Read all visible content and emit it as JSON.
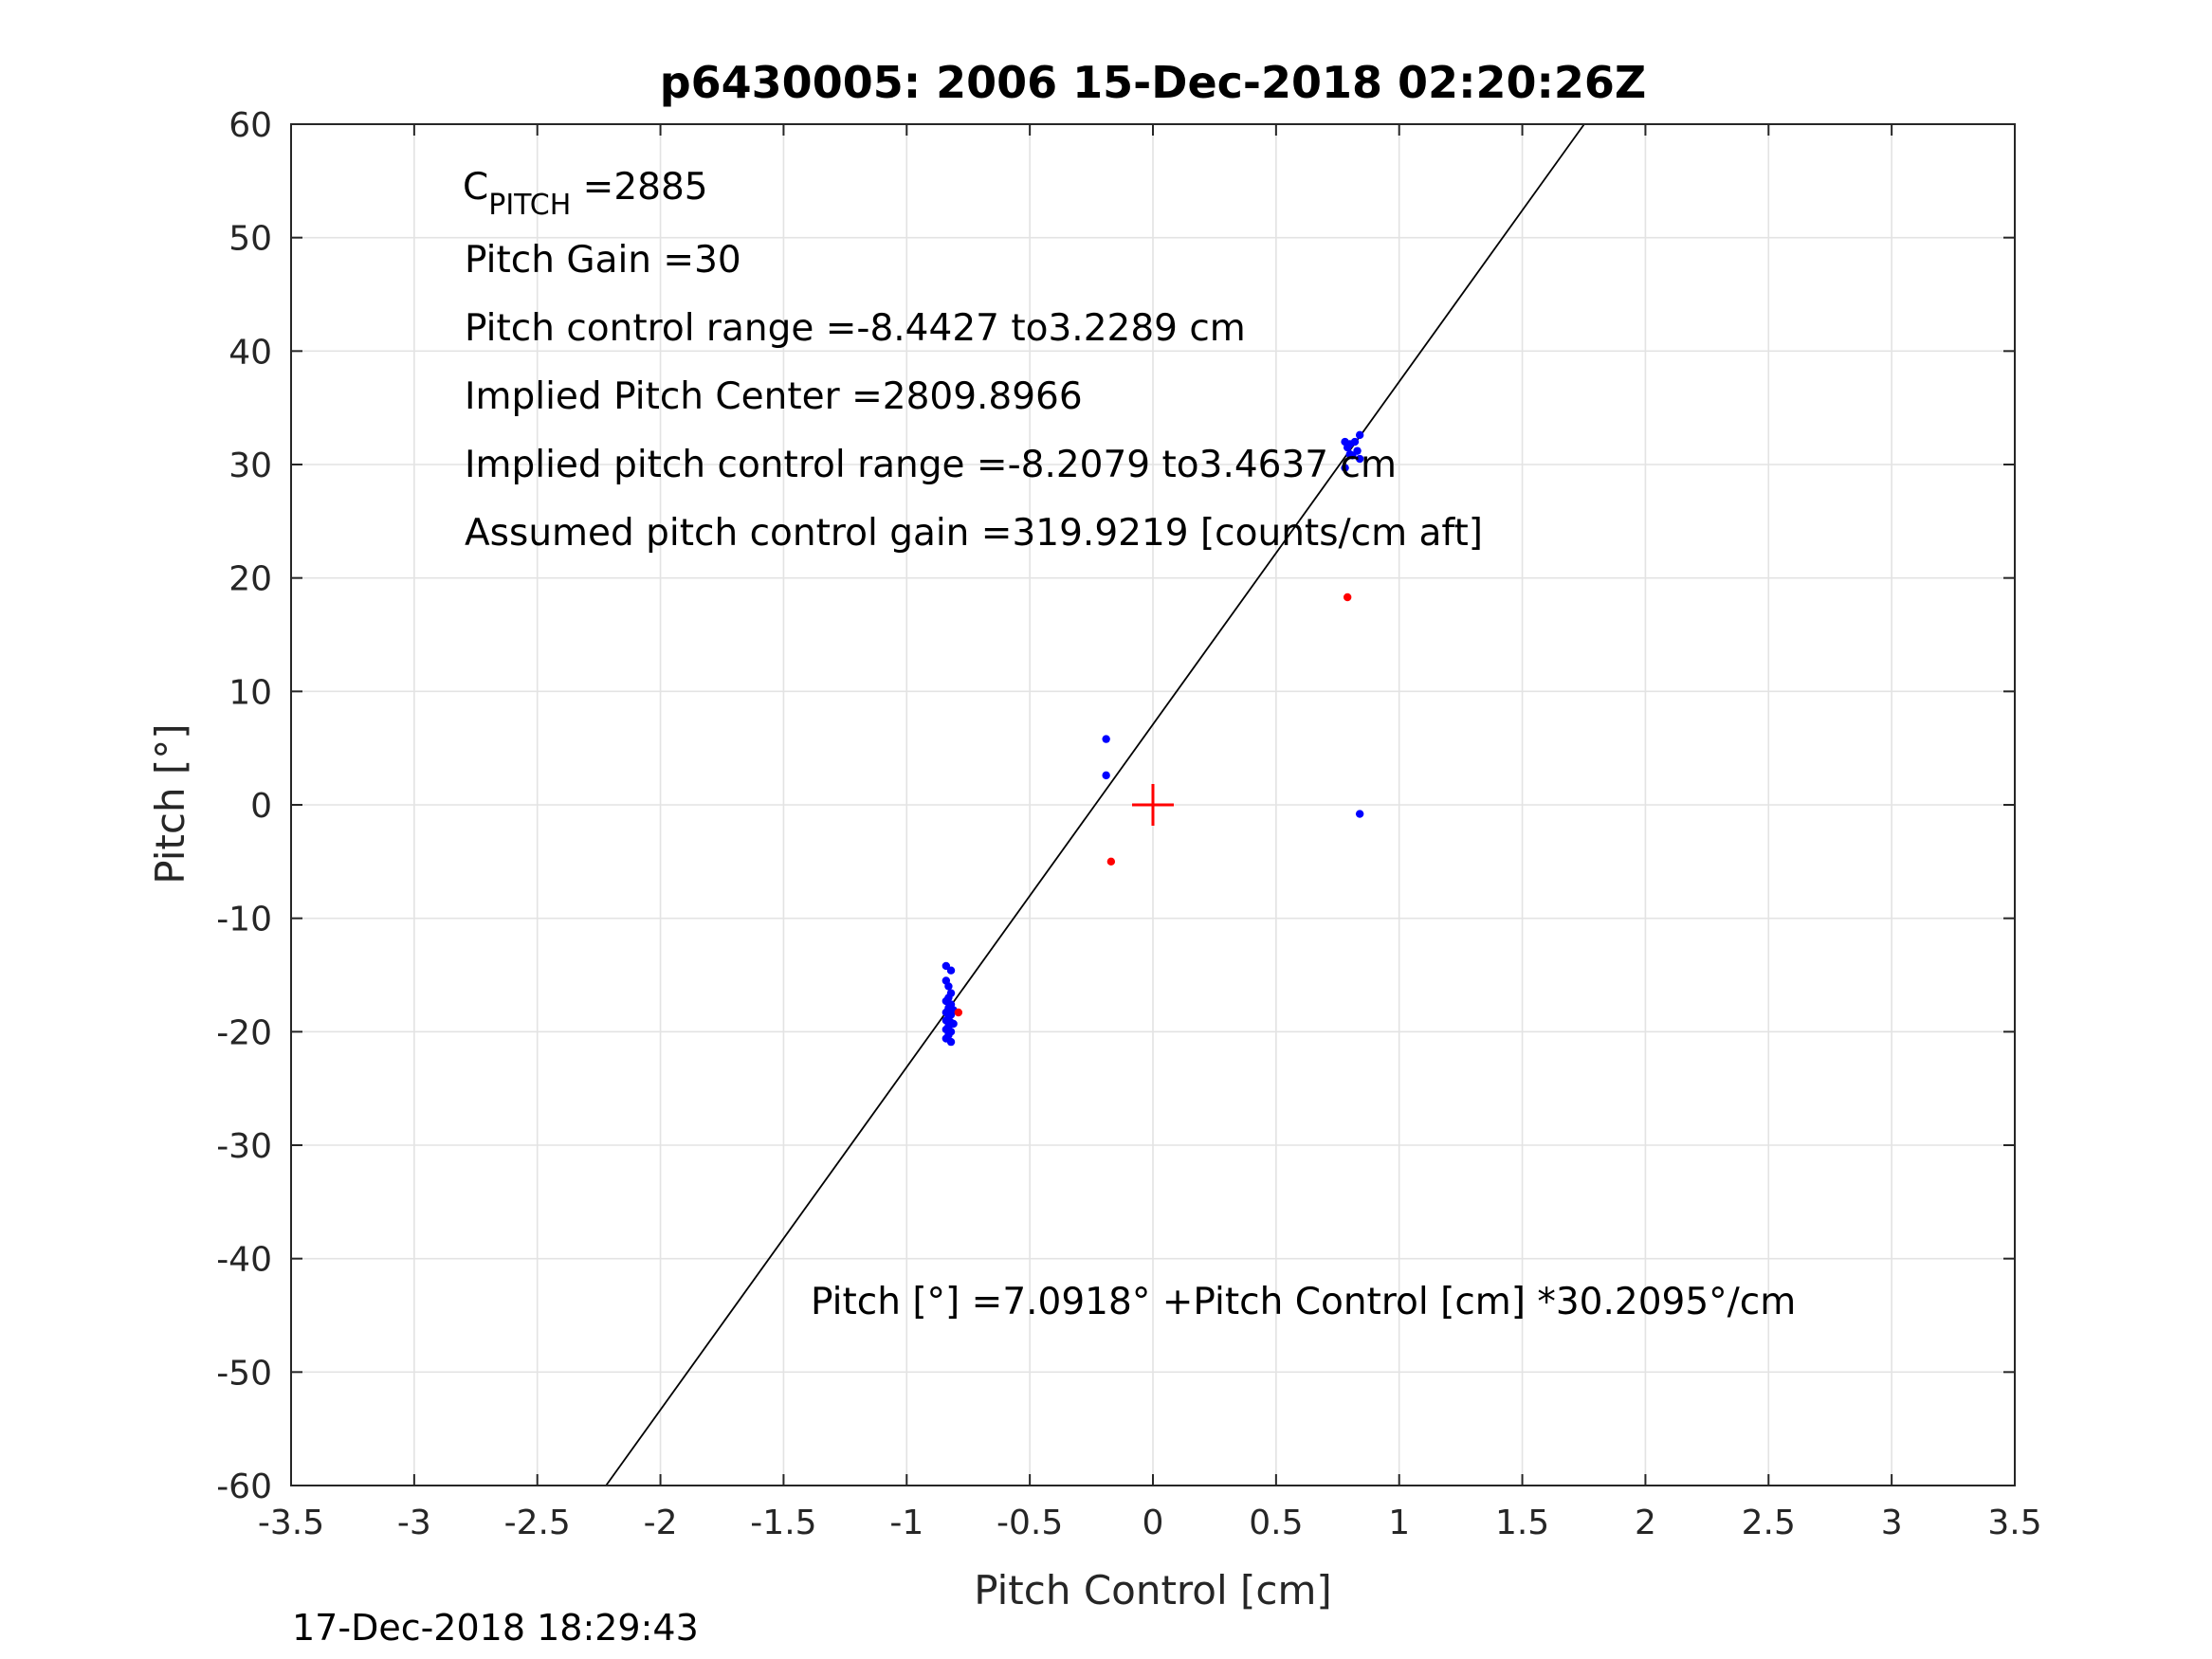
{
  "chart_data": {
    "type": "scatter",
    "title": "p6430005:  2006 15-Dec-2018 02:20:26Z",
    "xlabel": "Pitch Control [cm]",
    "ylabel": "Pitch [°]",
    "xlim": [
      -3.5,
      3.5
    ],
    "ylim": [
      -60,
      60
    ],
    "xticks": [
      -3.5,
      -3,
      -2.5,
      -2,
      -1.5,
      -1,
      -0.5,
      0,
      0.5,
      1,
      1.5,
      2,
      2.5,
      3,
      3.5
    ],
    "yticks": [
      -60,
      -50,
      -40,
      -30,
      -20,
      -10,
      0,
      10,
      20,
      30,
      40,
      50,
      60
    ],
    "xtick_labels": [
      "-3.5",
      "-3",
      "-2.5",
      "-2",
      "-1.5",
      "-1",
      "-0.5",
      "0",
      "0.5",
      "1",
      "1.5",
      "2",
      "2.5",
      "3",
      "3.5"
    ],
    "ytick_labels": [
      "-60",
      "-50",
      "-40",
      "-30",
      "-20",
      "-10",
      "0",
      "10",
      "20",
      "30",
      "40",
      "50",
      "60"
    ],
    "grid": true,
    "fit_line": {
      "intercept": 7.0918,
      "slope": 30.2095,
      "color": "#000000"
    },
    "center_marker": {
      "x": 0,
      "y": 0,
      "color": "#ff0000"
    },
    "series": [
      {
        "color": "#0000ff",
        "points": [
          [
            -0.84,
            -14.2
          ],
          [
            -0.82,
            -14.6
          ],
          [
            -0.84,
            -15.5
          ],
          [
            -0.83,
            -16.0
          ],
          [
            -0.82,
            -16.6
          ],
          [
            -0.83,
            -17.0
          ],
          [
            -0.84,
            -17.3
          ],
          [
            -0.82,
            -17.6
          ],
          [
            -0.83,
            -17.9
          ],
          [
            -0.81,
            -18.1
          ],
          [
            -0.84,
            -18.3
          ],
          [
            -0.82,
            -18.5
          ],
          [
            -0.83,
            -18.8
          ],
          [
            -0.84,
            -19.0
          ],
          [
            -0.82,
            -19.2
          ],
          [
            -0.83,
            -19.5
          ],
          [
            -0.84,
            -19.8
          ],
          [
            -0.82,
            -20.0
          ],
          [
            -0.83,
            -20.3
          ],
          [
            -0.84,
            -20.6
          ],
          [
            -0.82,
            -20.9
          ],
          [
            -0.81,
            -19.3
          ],
          [
            -0.19,
            5.8
          ],
          [
            -0.19,
            2.6
          ],
          [
            0.78,
            32.0
          ],
          [
            0.8,
            31.8
          ],
          [
            0.82,
            32.0
          ],
          [
            0.84,
            32.6
          ],
          [
            0.79,
            31.5
          ],
          [
            0.83,
            31.2
          ],
          [
            0.81,
            30.8
          ],
          [
            0.84,
            30.5
          ],
          [
            0.8,
            30.9
          ],
          [
            0.78,
            29.7
          ],
          [
            0.84,
            -0.8
          ]
        ]
      },
      {
        "color": "#ff0000",
        "points": [
          [
            -0.79,
            -18.3
          ],
          [
            -0.17,
            -5.0
          ],
          [
            0.79,
            18.3
          ]
        ]
      }
    ],
    "annotations": {
      "cpitch_main": "C",
      "cpitch_sub": "PITCH",
      "cpitch_value": " =2885",
      "pitch_gain": "Pitch Gain =30",
      "control_range": "Pitch control range =-8.4427 to3.2289 cm",
      "implied_center": "Implied Pitch Center =2809.8966",
      "implied_range": "Implied pitch control range =-8.2079 to3.4637 cm",
      "assumed_gain": "Assumed pitch control gain =319.9219 [counts/cm aft]",
      "fit_equation": "Pitch [°] =7.0918° +Pitch Control [cm] *30.2095°/cm"
    }
  },
  "footer_timestamp": "17-Dec-2018 18:29:43"
}
